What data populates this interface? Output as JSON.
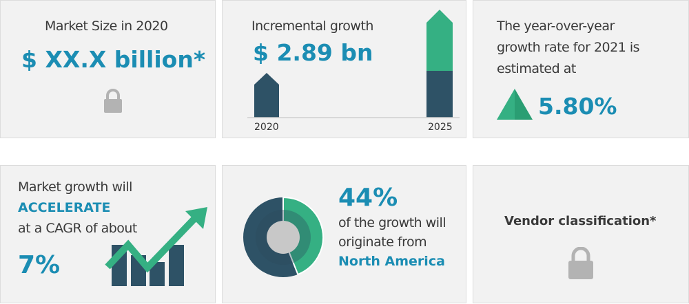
{
  "colors": {
    "accent": "#1b8db3",
    "dark": "#2e5266",
    "green": "#35b083",
    "lock": "#b3b3b3"
  },
  "market_size": {
    "label": "Market Size in 2020",
    "value": "$ XX.X billion*",
    "icon": "lock-icon"
  },
  "incremental": {
    "label": "Incremental growth",
    "value": "$ 2.89 bn",
    "year_start": "2020",
    "year_end": "2025"
  },
  "yoy": {
    "line1": "The year-over-year",
    "line2": "growth rate for 2021 is",
    "line3": "estimated at",
    "value": "5.80%",
    "icon": "triangle-up-icon"
  },
  "cagr": {
    "line1": "Market growth will",
    "line2": "ACCELERATE",
    "line3": "at a CAGR of about",
    "value": "7%",
    "icon": "growth-chart-arrow-icon"
  },
  "region": {
    "value": "44%",
    "line1": "of the growth will",
    "line2": "originate from",
    "region": "North America",
    "share_percent": 44
  },
  "vendor": {
    "label": "Vendor classification*",
    "icon": "lock-icon"
  }
}
